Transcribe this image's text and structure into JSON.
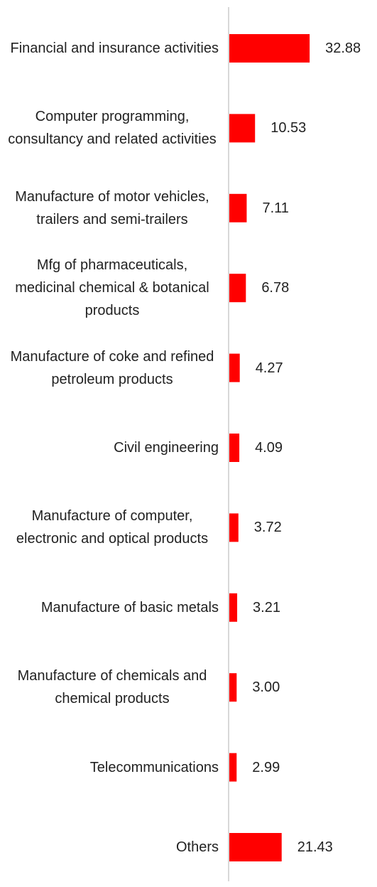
{
  "chart_data": {
    "type": "bar",
    "orientation": "horizontal",
    "categories": [
      "Financial and insurance activities",
      "Computer programming, consultancy and related activities",
      "Manufacture of motor vehicles, trailers and semi-trailers",
      "Mfg of pharmaceuticals, medicinal chemical & botanical products",
      "Manufacture of coke and refined petroleum products",
      "Civil engineering",
      "Manufacture of computer, electronic and optical products",
      "Manufacture of basic metals",
      "Manufacture of chemicals and chemical products",
      "Telecommunications",
      "Others"
    ],
    "values": [
      32.88,
      10.53,
      7.11,
      6.78,
      4.27,
      4.09,
      3.72,
      3.21,
      3.0,
      2.99,
      21.43
    ],
    "value_labels": [
      "32.88",
      "10.53",
      "7.11",
      "6.78",
      "4.27",
      "4.09",
      "3.72",
      "3.21",
      "3.00",
      "2.99",
      "21.43"
    ],
    "color": "#ff0000"
  }
}
